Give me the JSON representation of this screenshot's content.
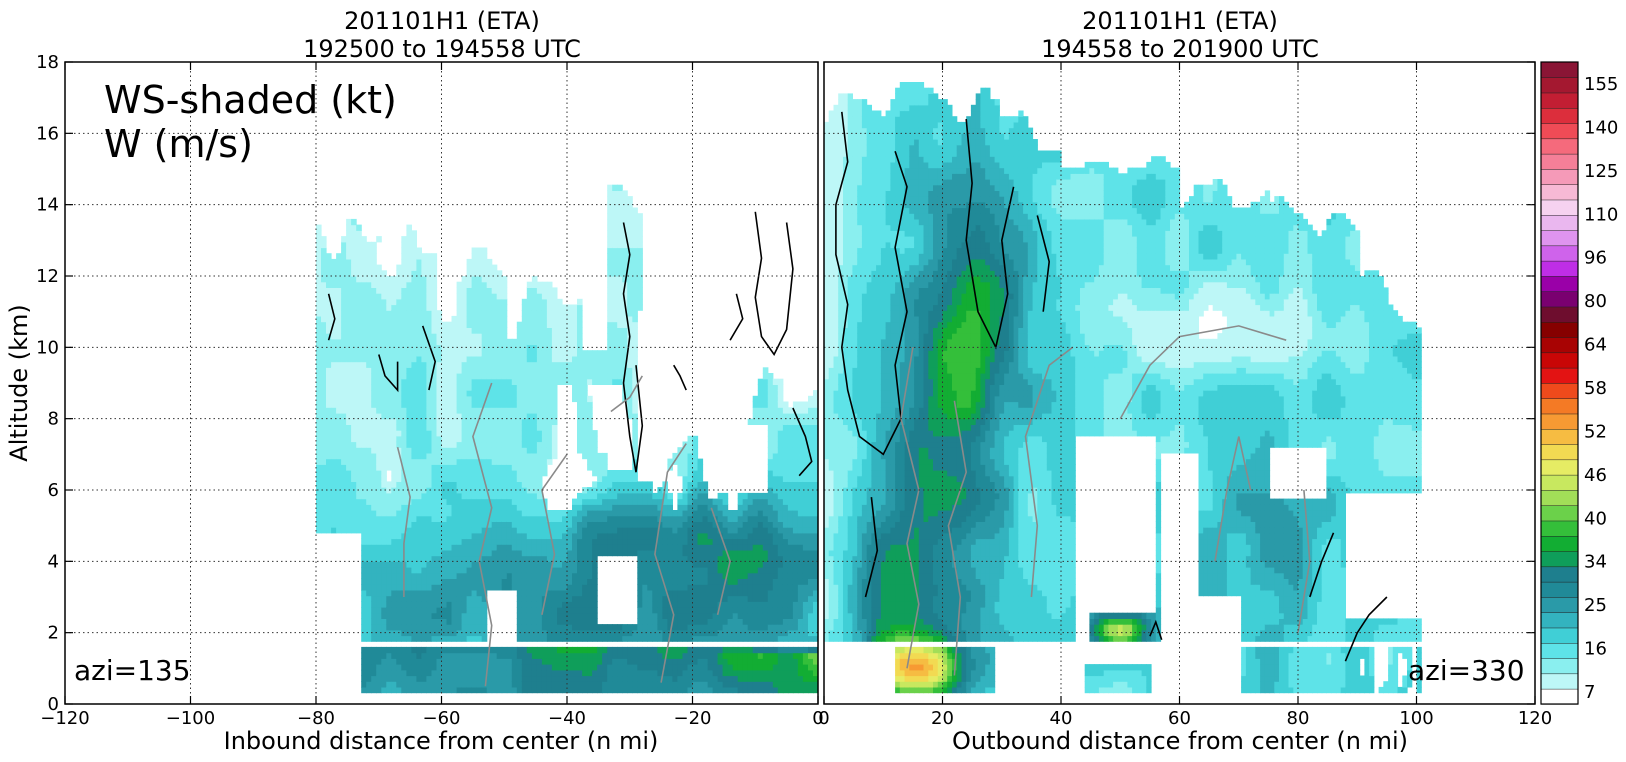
{
  "figure": {
    "left_panel": {
      "title_line1": "201101H1 (ETA)",
      "title_line2": "192500 to 194558 UTC",
      "xlabel": "Inbound distance from center (n mi)",
      "ylabel": "Altitude (km)",
      "annotation_main_line1": "WS-shaded (kt)",
      "annotation_main_line2": "W (m/s)",
      "azimuth_label": "azi=135",
      "xticks": [
        "−120",
        "−100",
        "−80",
        "−60",
        "−40",
        "−20",
        "0"
      ],
      "yticks": [
        "0",
        "2",
        "4",
        "6",
        "8",
        "10",
        "12",
        "14",
        "16",
        "18"
      ]
    },
    "right_panel": {
      "title_line1": "201101H1 (ETA)",
      "title_line2": "194558 to 201900 UTC",
      "xlabel": "Outbound distance from center (n mi)",
      "azimuth_label": "azi=330",
      "xticks": [
        "0",
        "20",
        "40",
        "60",
        "80",
        "100",
        "120"
      ]
    },
    "colorbar": {
      "tick_labels": [
        "155",
        "140",
        "125",
        "110",
        "96",
        "80",
        "64",
        "58",
        "52",
        "46",
        "40",
        "34",
        "25",
        "16",
        "7"
      ],
      "colors": [
        "#ffffff",
        "#bdf7f7",
        "#8aefef",
        "#5ee3e8",
        "#40cfd6",
        "#33b3bf",
        "#2a9aa8",
        "#208a98",
        "#1e7f8e",
        "#0f9e5a",
        "#12ad33",
        "#34bf3a",
        "#6bd14a",
        "#a2de58",
        "#c8e85f",
        "#e6ec64",
        "#f2da52",
        "#f6bc42",
        "#f79a33",
        "#f47a25",
        "#ef4a1c",
        "#e31313",
        "#c90606",
        "#a80303",
        "#860000",
        "#6e0d2e",
        "#7a0070",
        "#9a00a8",
        "#bf2ee6",
        "#cf63eb",
        "#df94ef",
        "#eab7ef",
        "#f6d2f0",
        "#f7b9d5",
        "#f59ab8",
        "#f57f98",
        "#f56a7c",
        "#ef4b56",
        "#dc2e3c",
        "#c21e33",
        "#a41830",
        "#8a1535"
      ],
      "levels": [
        7,
        16,
        25,
        34,
        40,
        46,
        52,
        58,
        64,
        80,
        96,
        110,
        125,
        140,
        155
      ]
    }
  },
  "chart_data": [
    {
      "type": "heatmap",
      "title": "201101H1 (ETA) 192500 to 194558 UTC",
      "xlabel": "Inbound distance from center (n mi)",
      "ylabel": "Altitude (km)",
      "xlim": [
        -120,
        0
      ],
      "ylim": [
        0,
        18
      ],
      "grid": true,
      "shaded_variable": "WS (kt)",
      "contour_variable": "W (m/s)",
      "azimuth": 135,
      "data_extent_x": [
        -80,
        0
      ],
      "data_extent_y": [
        0.3,
        14
      ],
      "approx_max_ws_kt": 40
    },
    {
      "type": "heatmap",
      "title": "201101H1 (ETA) 194558 to 201900 UTC",
      "xlabel": "Outbound distance from center (n mi)",
      "ylabel": "Altitude (km)",
      "xlim": [
        0,
        120
      ],
      "ylim": [
        0,
        18
      ],
      "grid": true,
      "shaded_variable": "WS (kt)",
      "contour_variable": "W (m/s)",
      "azimuth": 330,
      "data_extent_x": [
        0,
        100
      ],
      "data_extent_y": [
        0.3,
        16.8
      ],
      "approx_max_ws_kt": 64
    }
  ]
}
